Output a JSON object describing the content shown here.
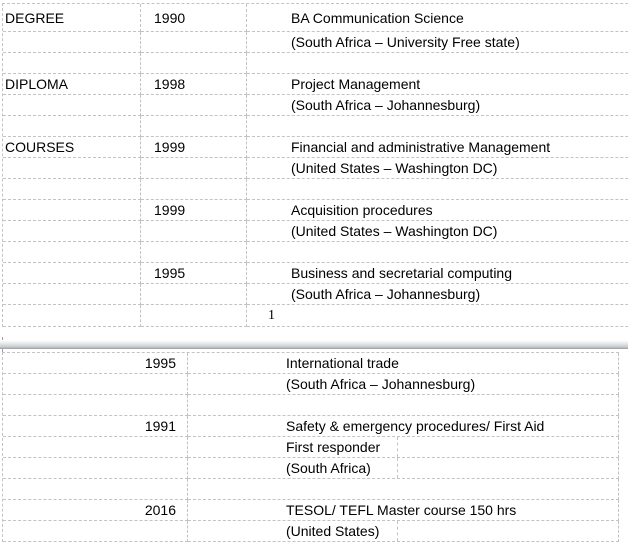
{
  "document": {
    "page1": {
      "rows": [
        {
          "label": "DEGREE",
          "year": "1990",
          "desc": "BA Communication Science"
        },
        {
          "label": "",
          "year": "",
          "desc": "(South Africa – University Free state)"
        },
        {
          "label": "",
          "year": "",
          "desc": ""
        },
        {
          "label": "DIPLOMA",
          "year": "1998",
          "desc": "Project Management"
        },
        {
          "label": "",
          "year": "",
          "desc": "(South Africa – Johannesburg)"
        },
        {
          "label": "",
          "year": "",
          "desc": ""
        },
        {
          "label": "COURSES",
          "year": "1999",
          "desc": "Financial and administrative Management"
        },
        {
          "label": "",
          "year": "",
          "desc": "(United States – Washington DC)"
        },
        {
          "label": "",
          "year": "",
          "desc": ""
        },
        {
          "label": "",
          "year": "1999",
          "desc": "Acquisition procedures"
        },
        {
          "label": "",
          "year": "",
          "desc": "(United States – Washington DC)"
        },
        {
          "label": "",
          "year": "",
          "desc": ""
        },
        {
          "label": "",
          "year": "1995",
          "desc": "Business and secretarial computing"
        },
        {
          "label": "",
          "year": "",
          "desc": "(South Africa – Johannesburg)"
        }
      ],
      "page_number": "1"
    },
    "page2": {
      "rows": [
        {
          "year": "1995",
          "desc": "International trade",
          "split": false
        },
        {
          "year": "",
          "desc": "(South Africa – Johannesburg)",
          "split": false
        },
        {
          "year": "",
          "desc": "",
          "split": false
        },
        {
          "year": "1991",
          "desc": "Safety & emergency procedures/ First Aid",
          "split": false
        },
        {
          "year": "",
          "desc": "First responder",
          "split": true
        },
        {
          "year": "",
          "desc": "(South Africa)",
          "split": true
        },
        {
          "year": "",
          "desc": "",
          "split": false
        },
        {
          "year": "2016",
          "desc": "TESOL/ TEFL Master course 150 hrs",
          "split": false
        },
        {
          "year": "",
          "desc": "(United States)",
          "split": true
        }
      ]
    },
    "colors": {
      "gridline": "#c3c3c3",
      "page_break_edge": "#9da3a9",
      "text": "#000000",
      "background": "#ffffff"
    }
  }
}
